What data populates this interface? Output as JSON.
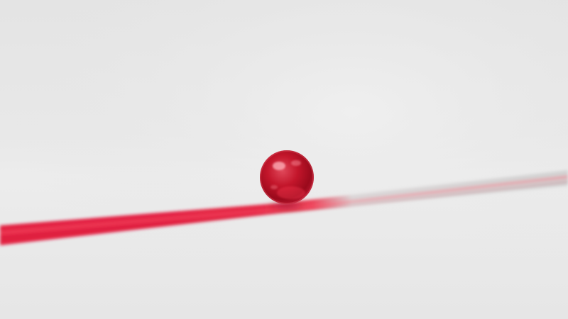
{
  "scene": {
    "description_colors": {
      "background": "#e8e8e8",
      "floor": "#ececec",
      "sphere": "#c0182a",
      "sphere_highlight": "#ff8a95",
      "trail_red": "#e21f3a",
      "trail_grey": "#d2d2d2"
    }
  }
}
